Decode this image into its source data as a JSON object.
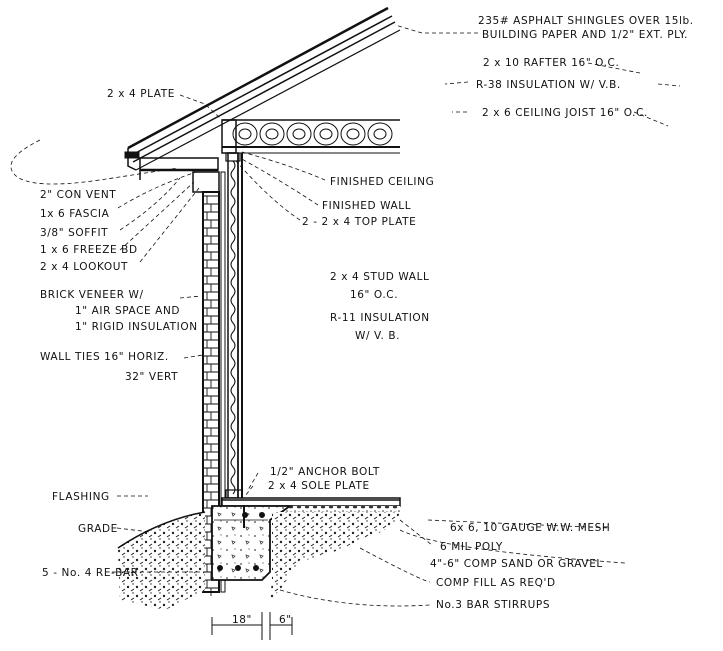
{
  "labels": {
    "shingles_1": "235# ASPHALT SHINGLES OVER 15lb.",
    "shingles_2": "BUILDING PAPER AND 1/2\" EXT. PLY.",
    "rafter": "2 x 10  RAFTER  16\" O.C.",
    "insulation_r38": "R-38  INSULATION  W/  V.B.",
    "ceiling_joist": "2 x 6  CEILING  JOIST  16\" O.C.",
    "plate_2x4": "2 x 4  PLATE",
    "con_vent": "2\" CON VENT",
    "fascia": "1x 6  FASCIA",
    "soffit": "3/8\"  SOFFIT",
    "freeze_bd": "1 x 6  FREEZE  BD",
    "lookout": "2 x 4  LOOKOUT",
    "finished_ceiling": "FINISHED  CEILING",
    "finished_wall": "FINISHED  WALL",
    "top_plate": "2 - 2 x 4  TOP  PLATE",
    "stud_wall_1": "2 x 4  STUD  WALL",
    "stud_wall_2": "16\" O.C.",
    "r11_1": "R-11  INSULATION",
    "r11_2": "W/  V. B.",
    "brick_1": "BRICK  VENEER  W/",
    "brick_2": "1\" AIR  SPACE  AND",
    "brick_3": "1\" RIGID  INSULATION",
    "wall_ties_1": "WALL  TIES   16\" HORIZ.",
    "wall_ties_2": "32\"  VERT",
    "anchor_bolt": "1/2\"  ANCHOR  BOLT",
    "sole_plate": "2 x 4  SOLE  PLATE",
    "flashing": "FLASHING",
    "grade": "GRADE",
    "rebar": "5 - No. 4  RE-BAR",
    "mesh": "6x 6, 10  GAUGE  W.W. MESH",
    "poly": "6  MIL  POLY",
    "sand_gravel": "4\"-6\"  COMP  SAND  OR  GRAVEL",
    "comp_fill": "COMP  FILL  AS  REQ'D",
    "stirrups": "No.3  BAR   STIRRUPS",
    "dim_18": "18\"",
    "dim_6": "6\""
  }
}
